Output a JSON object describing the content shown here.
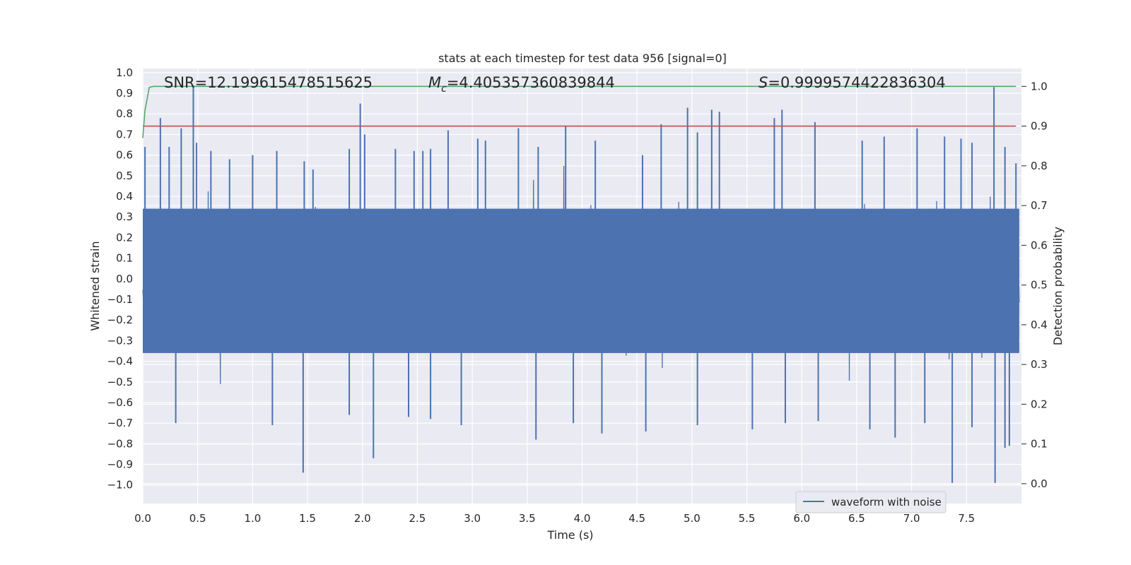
{
  "chart_data": {
    "type": "line",
    "title": "stats at each timestep for test data 956 [signal=0]",
    "xlabel": "Time (s)",
    "ylabel": "Whitened strain",
    "y2label": "Detection probability",
    "xlim": [
      0.0,
      8.0
    ],
    "ylim": [
      -1.09,
      1.02
    ],
    "y2lim": [
      -0.05,
      1.045
    ],
    "xticks": [
      "0.0",
      "0.5",
      "1.0",
      "1.5",
      "2.0",
      "2.5",
      "3.0",
      "3.5",
      "4.0",
      "4.5",
      "5.0",
      "5.5",
      "6.0",
      "6.5",
      "7.0",
      "7.5"
    ],
    "xtick_values": [
      0.0,
      0.5,
      1.0,
      1.5,
      2.0,
      2.5,
      3.0,
      3.5,
      4.0,
      4.5,
      5.0,
      5.5,
      6.0,
      6.5,
      7.0,
      7.5
    ],
    "yticks": [
      "1.0",
      "0.9",
      "0.8",
      "0.7",
      "0.6",
      "0.5",
      "0.4",
      "0.3",
      "0.2",
      "0.1",
      "0.0",
      "−0.1",
      "−0.2",
      "−0.3",
      "−0.4",
      "−0.5",
      "−0.6",
      "−0.7",
      "−0.8",
      "−0.9",
      "−1.0"
    ],
    "ytick_values": [
      1.0,
      0.9,
      0.8,
      0.7,
      0.6,
      0.5,
      0.4,
      0.3,
      0.2,
      0.1,
      0.0,
      -0.1,
      -0.2,
      -0.3,
      -0.4,
      -0.5,
      -0.6,
      -0.7,
      -0.8,
      -0.9,
      -1.0
    ],
    "y2ticks": [
      "1.0",
      "0.9",
      "0.8",
      "0.7",
      "0.6",
      "0.5",
      "0.4",
      "0.3",
      "0.2",
      "0.1",
      "0.0"
    ],
    "y2tick_values": [
      1.0,
      0.9,
      0.8,
      0.7,
      0.6,
      0.5,
      0.4,
      0.3,
      0.2,
      0.1,
      0.0
    ],
    "annotations": {
      "snr": "SNR=12.199615478515625",
      "mc_symbol": "M",
      "mc_sub": "c",
      "mc_value": "=4.405357360839844",
      "s_symbol": "S",
      "s_value": "=0.9999574422836304"
    },
    "grid": true,
    "legend_placement": "lower-right",
    "series": [
      {
        "name": "waveform with noise",
        "axis": "left",
        "color": "#4c72b0",
        "description_values": "dense noise, sampled 2048 Hz for 8 s, envelope approx ±0.35 with spikes up to +0.93 / -0.99",
        "spikes": [
          [
            0.02,
            0.64
          ],
          [
            0.16,
            0.78
          ],
          [
            0.24,
            0.64
          ],
          [
            0.35,
            0.73
          ],
          [
            0.46,
            0.93
          ],
          [
            0.49,
            0.66
          ],
          [
            0.62,
            0.62
          ],
          [
            0.79,
            0.58
          ],
          [
            1.0,
            0.6
          ],
          [
            1.22,
            0.62
          ],
          [
            1.47,
            0.57
          ],
          [
            1.55,
            0.53
          ],
          [
            1.88,
            0.63
          ],
          [
            1.98,
            0.85
          ],
          [
            2.02,
            0.7
          ],
          [
            2.3,
            0.63
          ],
          [
            2.47,
            0.62
          ],
          [
            2.55,
            0.62
          ],
          [
            2.62,
            0.63
          ],
          [
            2.78,
            0.72
          ],
          [
            3.05,
            0.68
          ],
          [
            3.12,
            0.67
          ],
          [
            3.42,
            0.73
          ],
          [
            3.6,
            0.64
          ],
          [
            3.85,
            0.74
          ],
          [
            4.12,
            0.67
          ],
          [
            4.55,
            0.6
          ],
          [
            4.72,
            0.75
          ],
          [
            4.96,
            0.83
          ],
          [
            5.05,
            0.71
          ],
          [
            5.18,
            0.82
          ],
          [
            5.25,
            0.81
          ],
          [
            5.75,
            0.78
          ],
          [
            5.82,
            0.82
          ],
          [
            6.12,
            0.76
          ],
          [
            6.55,
            0.67
          ],
          [
            6.75,
            0.69
          ],
          [
            7.05,
            0.73
          ],
          [
            7.3,
            0.69
          ],
          [
            7.45,
            0.68
          ],
          [
            7.55,
            0.66
          ],
          [
            7.75,
            0.93
          ],
          [
            7.85,
            0.64
          ],
          [
            7.95,
            0.56
          ],
          [
            1.46,
            -0.94
          ],
          [
            2.1,
            -0.87
          ],
          [
            0.3,
            -0.7
          ],
          [
            1.18,
            -0.71
          ],
          [
            1.88,
            -0.66
          ],
          [
            2.42,
            -0.67
          ],
          [
            2.62,
            -0.68
          ],
          [
            2.9,
            -0.71
          ],
          [
            3.58,
            -0.78
          ],
          [
            3.92,
            -0.7
          ],
          [
            4.18,
            -0.75
          ],
          [
            4.58,
            -0.74
          ],
          [
            5.05,
            -0.71
          ],
          [
            5.55,
            -0.73
          ],
          [
            5.85,
            -0.7
          ],
          [
            6.15,
            -0.69
          ],
          [
            6.62,
            -0.73
          ],
          [
            6.85,
            -0.77
          ],
          [
            7.12,
            -0.7
          ],
          [
            7.37,
            -0.99
          ],
          [
            7.55,
            -0.72
          ],
          [
            7.76,
            -0.99
          ],
          [
            7.85,
            -0.82
          ],
          [
            7.89,
            -0.81
          ]
        ]
      },
      {
        "name": "detection probability",
        "axis": "right",
        "color": "#55a868",
        "x": [
          0.0,
          0.02,
          0.06,
          0.1,
          0.2,
          7.95
        ],
        "y": [
          0.87,
          0.94,
          0.998,
          1.0,
          1.0,
          1.0
        ]
      },
      {
        "name": "threshold",
        "axis": "right",
        "color": "#c44e52",
        "x": [
          0.0,
          7.95
        ],
        "y": [
          0.9,
          0.9
        ]
      }
    ]
  }
}
